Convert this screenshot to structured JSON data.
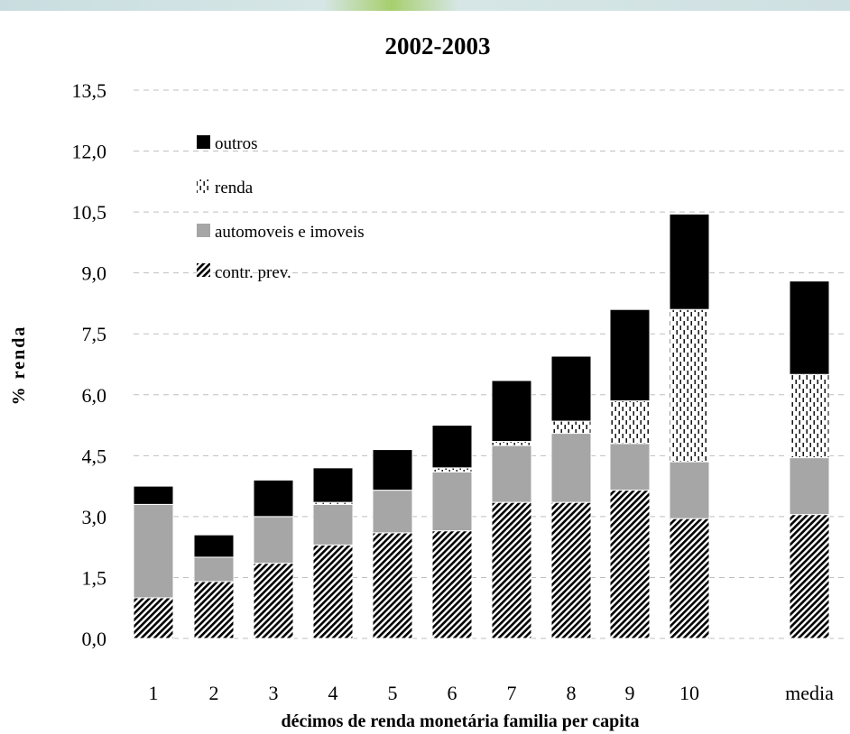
{
  "colors": {
    "outros": "#000000",
    "renda": "#ffffff",
    "automoveis_e_imoveis": "#a6a6a6",
    "contr_prev": "#000000",
    "gridline": "#bfbfbf"
  },
  "chart_data": {
    "type": "bar",
    "stacked": true,
    "title": "2002-2003",
    "xlabel": "décimos de renda monetária familia per capita",
    "ylabel": "% renda",
    "ylim": [
      0,
      13.5
    ],
    "yticks": [
      "0,0",
      "1,5",
      "3,0",
      "4,5",
      "6,0",
      "7,5",
      "9,0",
      "10,5",
      "12,0",
      "13,5"
    ],
    "grid": true,
    "legend_position": "top-left",
    "categories": [
      "1",
      "2",
      "3",
      "4",
      "5",
      "6",
      "7",
      "8",
      "9",
      "10",
      "media"
    ],
    "series": [
      {
        "name": "contr. prev.",
        "key": "contr_prev",
        "pattern": "diagonal-hatch",
        "values": [
          1.0,
          1.4,
          1.85,
          2.3,
          2.6,
          2.65,
          3.35,
          3.35,
          3.65,
          2.95,
          3.05
        ]
      },
      {
        "name": "automoveis e imoveis",
        "key": "automoveis_e_imoveis",
        "pattern": "solid-gray",
        "values": [
          2.3,
          0.6,
          1.15,
          1.0,
          1.05,
          1.45,
          1.4,
          1.7,
          1.15,
          1.4,
          1.4
        ]
      },
      {
        "name": "renda",
        "key": "renda",
        "pattern": "dotted-dashes",
        "values": [
          0.0,
          0.0,
          0.0,
          0.05,
          0.0,
          0.1,
          0.1,
          0.3,
          1.05,
          3.75,
          2.05
        ]
      },
      {
        "name": "outros",
        "key": "outros",
        "pattern": "solid-black",
        "values": [
          0.45,
          0.55,
          0.9,
          0.85,
          1.0,
          1.05,
          1.5,
          1.6,
          2.25,
          2.35,
          2.3
        ]
      }
    ],
    "legend_order": [
      "outros",
      "renda",
      "automoveis_e_imoveis",
      "contr_prev"
    ]
  }
}
